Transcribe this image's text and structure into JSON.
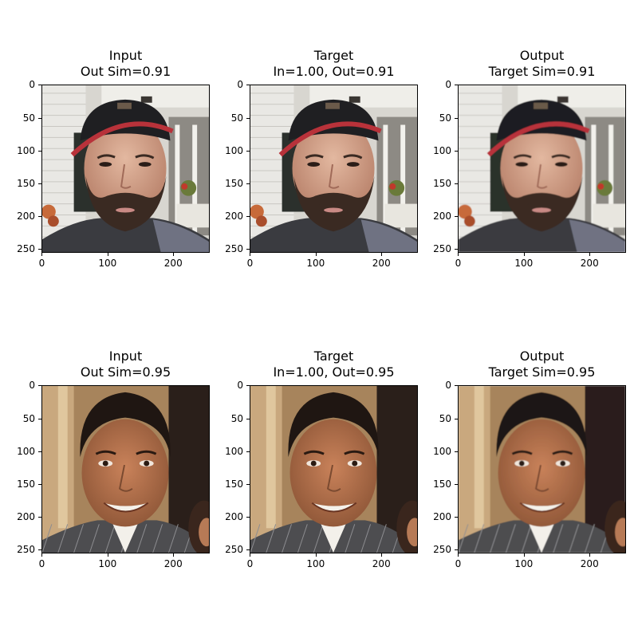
{
  "figure": {
    "panels": [
      {
        "title_line1": "Input",
        "title_line2": "Out Sim=0.91",
        "subject": "man-with-cap"
      },
      {
        "title_line1": "Target",
        "title_line2": "In=1.00, Out=0.91",
        "subject": "man-with-cap"
      },
      {
        "title_line1": "Output",
        "title_line2": "Target Sim=0.91",
        "subject": "man-with-cap"
      },
      {
        "title_line1": "Input",
        "title_line2": "Out Sim=0.95",
        "subject": "smiling-man"
      },
      {
        "title_line1": "Target",
        "title_line2": "In=1.00, Out=0.95",
        "subject": "smiling-man"
      },
      {
        "title_line1": "Output",
        "title_line2": "Target Sim=0.95",
        "subject": "smiling-man"
      }
    ],
    "x_ticks": [
      "0",
      "100",
      "200"
    ],
    "x_tick_values": [
      0,
      100,
      200
    ],
    "y_ticks": [
      "0",
      "50",
      "100",
      "150",
      "200",
      "250"
    ],
    "y_tick_values": [
      0,
      50,
      100,
      150,
      200,
      250
    ],
    "image_size": 256
  }
}
